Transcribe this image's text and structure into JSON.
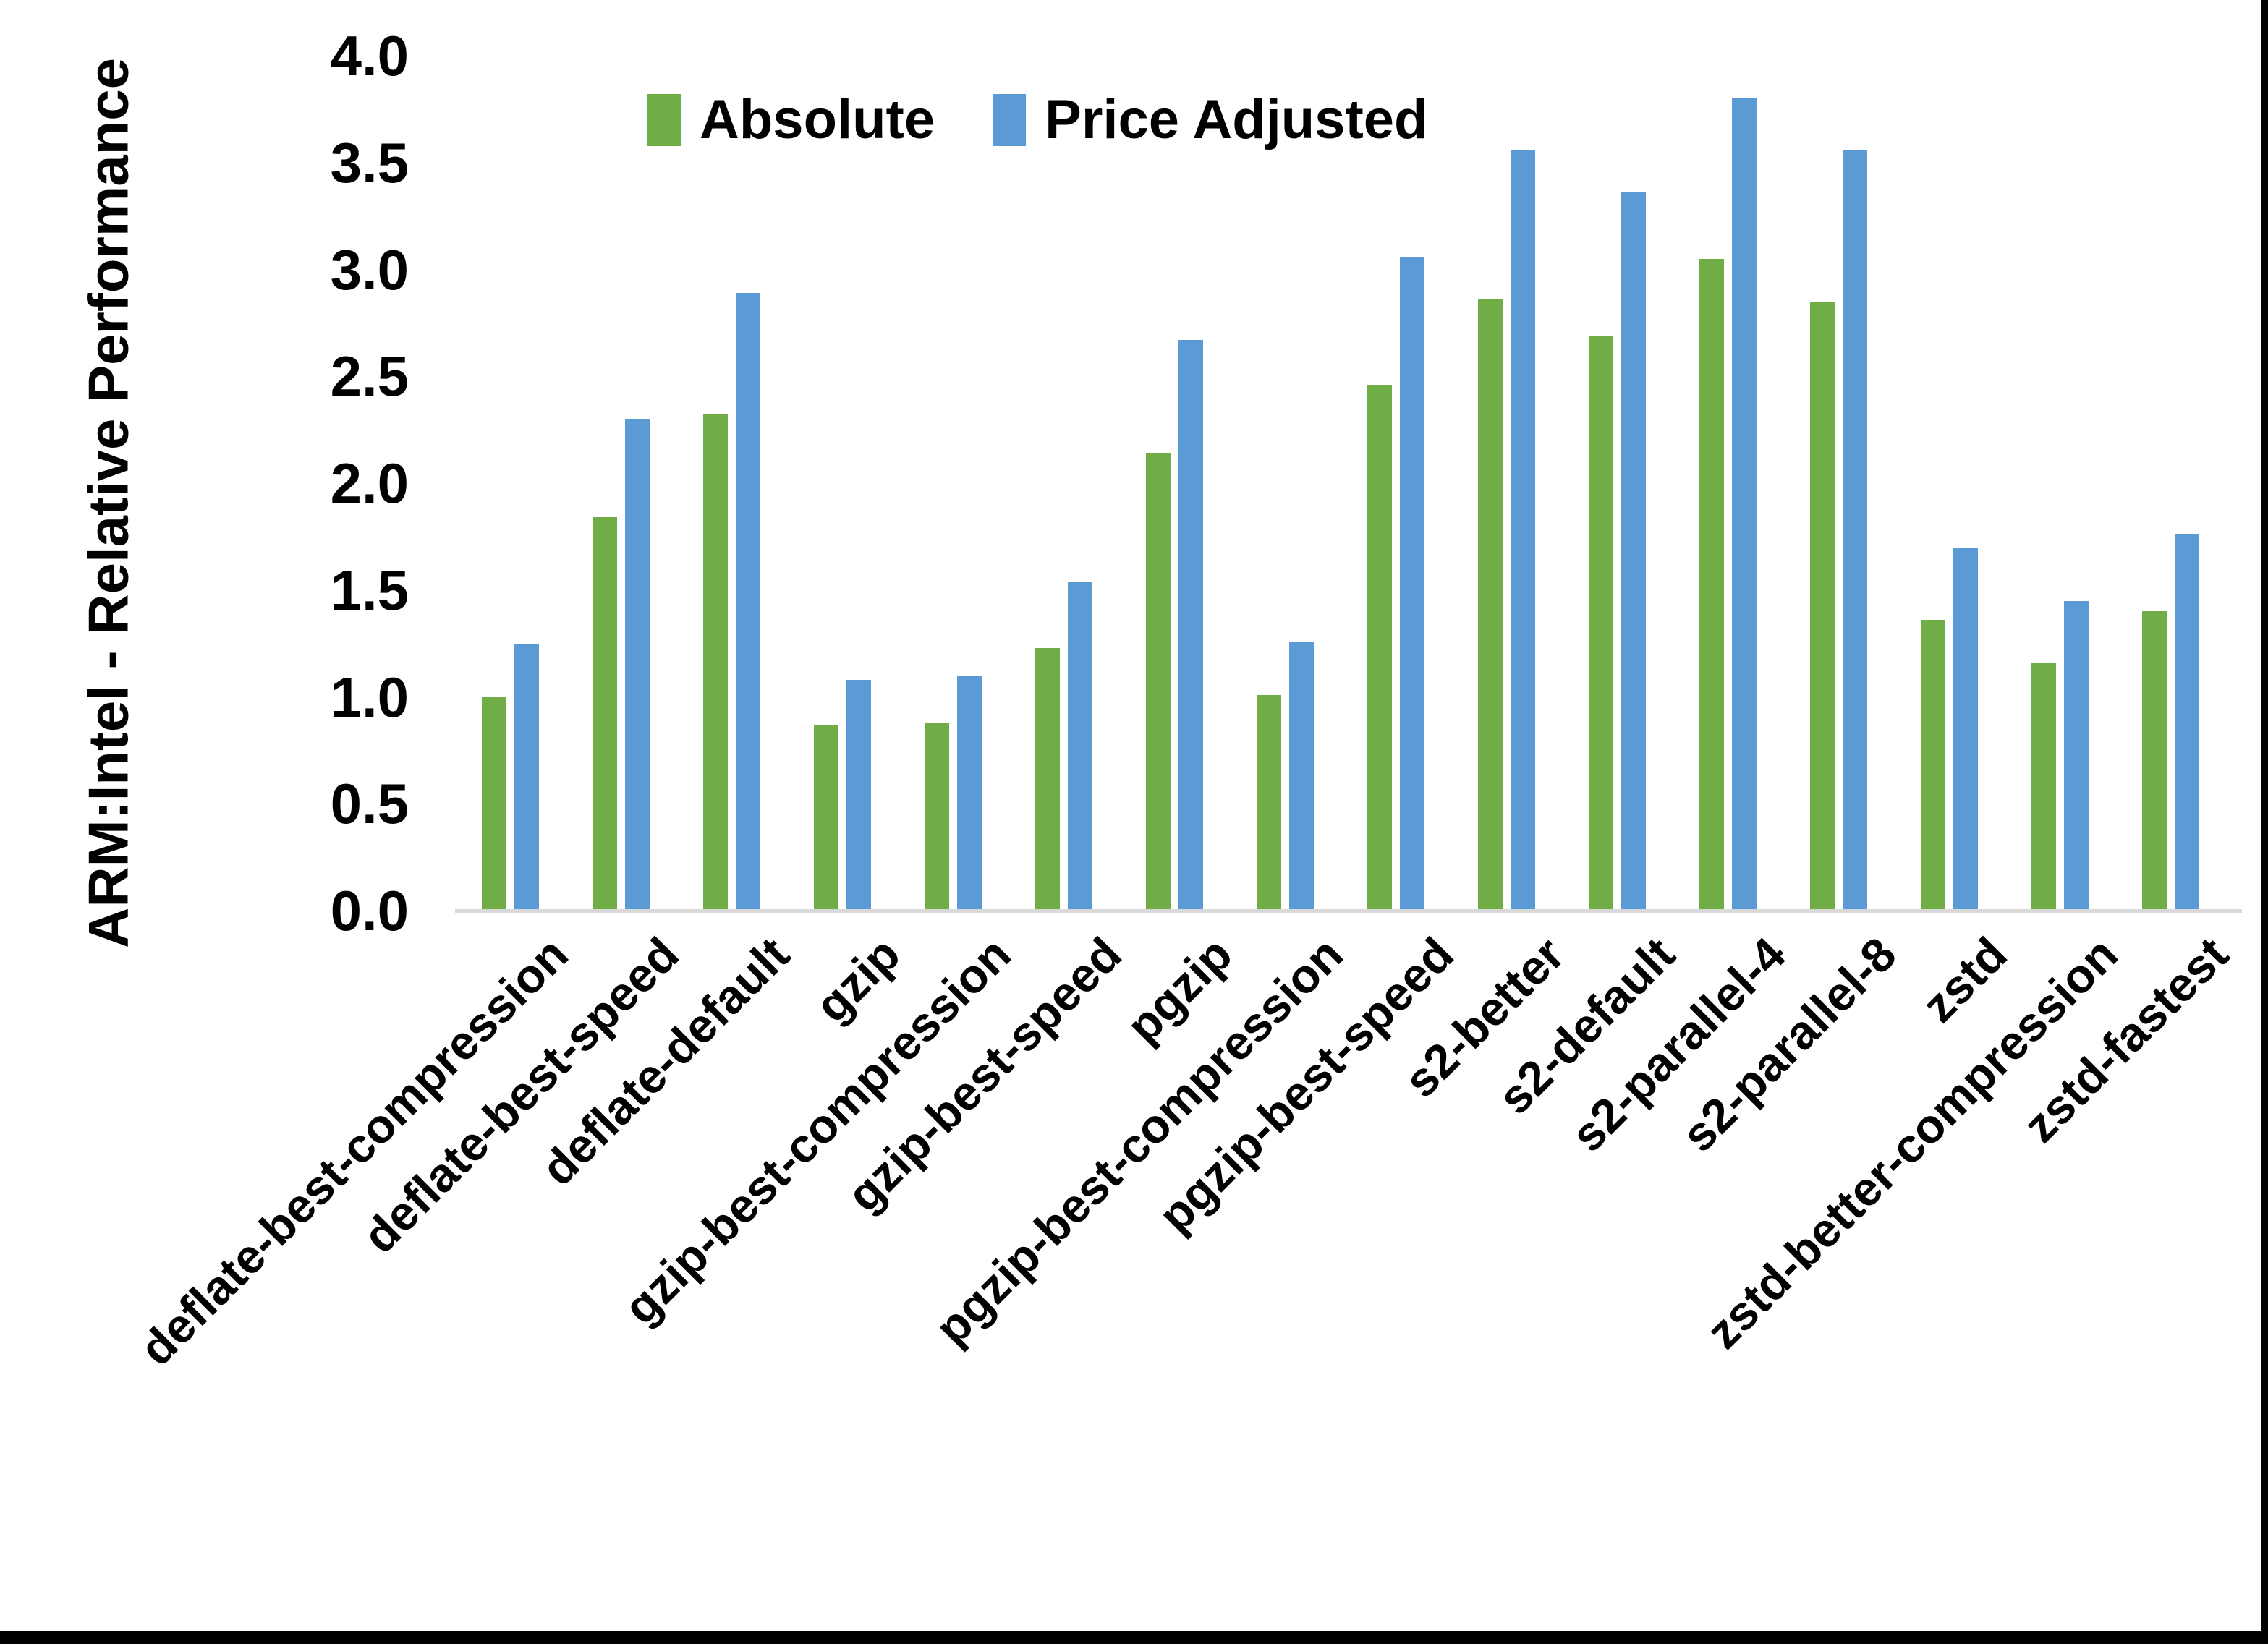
{
  "frame": {
    "background": "#ffffff",
    "border_color": "#000000"
  },
  "chart_data": {
    "type": "bar",
    "title": "",
    "xlabel": "",
    "ylabel": "ARM:Intel - Relative Performance",
    "ylim": [
      0.0,
      4.0
    ],
    "ytick_step": 0.5,
    "yticks": [
      "0.0",
      "0.5",
      "1.0",
      "1.5",
      "2.0",
      "2.5",
      "3.0",
      "3.5",
      "4.0"
    ],
    "grid": false,
    "legend_position": "top-center",
    "axis_line_color": "#d9d9d9",
    "text_color": "#000000",
    "categories": [
      "deflate-best-compression",
      "deflate-best-speed",
      "deflate-default",
      "gzip",
      "gzip-best-compression",
      "gzip-best-speed",
      "pgzip",
      "pgzip-best-compression",
      "pgzip-best-speed",
      "s2-better",
      "s2-default",
      "s2-parallel-4",
      "s2-parallel-8",
      "zstd",
      "zstd-better-compression",
      "zstd-fastest"
    ],
    "series": [
      {
        "name": "Absolute",
        "color": "#70AD47",
        "values": [
          1.0,
          1.84,
          2.32,
          0.87,
          0.88,
          1.23,
          2.14,
          1.01,
          2.46,
          2.86,
          2.69,
          3.05,
          2.85,
          1.36,
          1.16,
          1.4
        ]
      },
      {
        "name": "Price Adjusted",
        "color": "#5B9BD5",
        "values": [
          1.25,
          2.3,
          2.89,
          1.08,
          1.1,
          1.54,
          2.67,
          1.26,
          3.06,
          3.56,
          3.36,
          3.8,
          3.56,
          1.7,
          1.45,
          1.76
        ]
      }
    ]
  }
}
